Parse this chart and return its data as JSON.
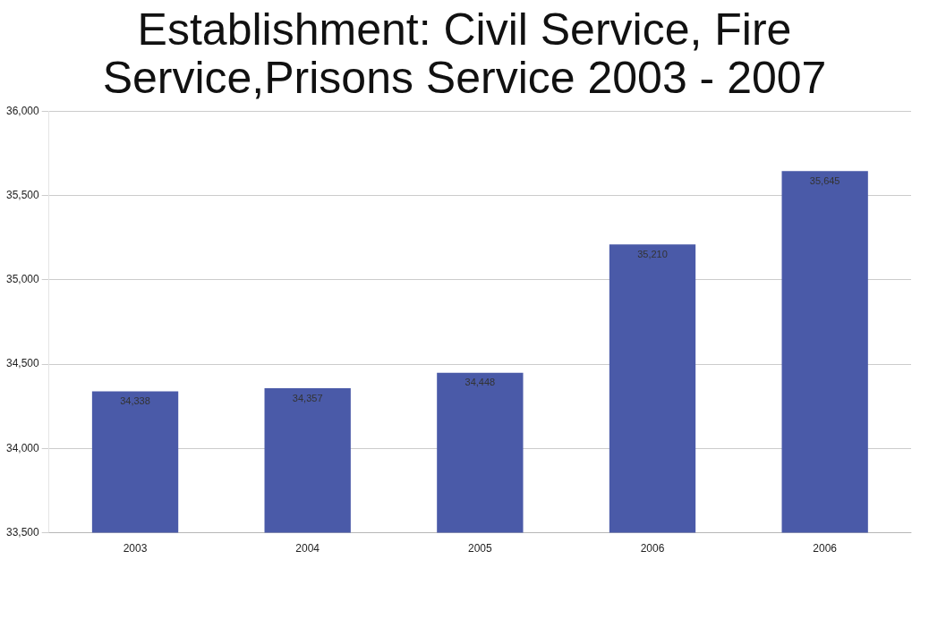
{
  "chart_data": {
    "type": "bar",
    "title": "Establishment: Civil Service, Fire Service,Prisons Service 2003 - 2007",
    "categories": [
      "2003",
      "2004",
      "2005",
      "2006",
      "2006"
    ],
    "values": [
      34338,
      34357,
      34448,
      35210,
      35645
    ],
    "value_labels": [
      "34,338",
      "34,357",
      "34,448",
      "35,210",
      "35,645"
    ],
    "color": "#4a5aa8",
    "ylim": [
      33500,
      36000
    ],
    "yticks": [
      {
        "value": 33500,
        "label": "33,500"
      },
      {
        "value": 34000,
        "label": "34,000"
      },
      {
        "value": 34500,
        "label": "34,500"
      },
      {
        "value": 35000,
        "label": "35,000"
      },
      {
        "value": 35500,
        "label": "35,500"
      },
      {
        "value": 36000,
        "label": "36,000"
      }
    ],
    "grid": "y"
  }
}
